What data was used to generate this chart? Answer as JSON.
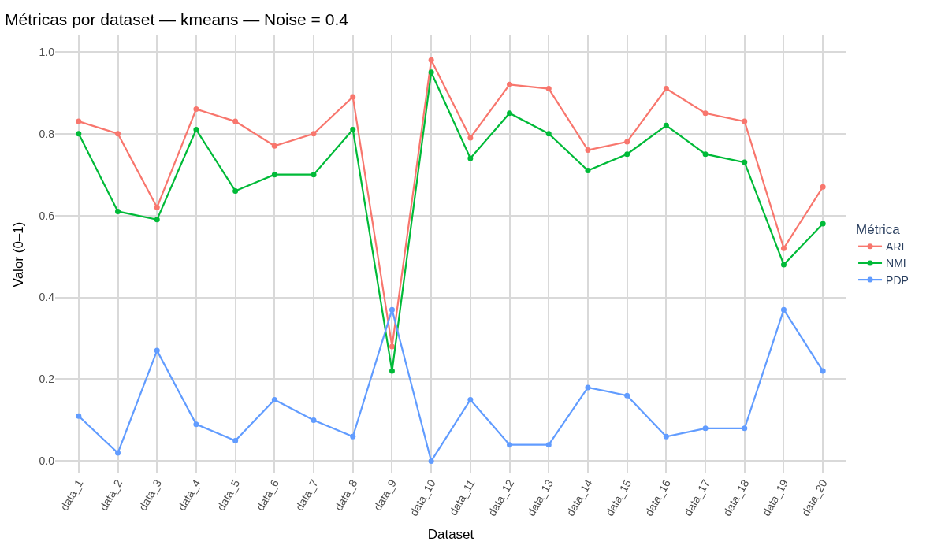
{
  "chart_data": {
    "type": "line",
    "title": "Métricas por dataset — kmeans — Noise = 0.4",
    "xlabel": "Dataset",
    "ylabel": "Valor (0–1)",
    "legend_title": "Métrica",
    "categories": [
      "data_1",
      "data_2",
      "data_3",
      "data_4",
      "data_5",
      "data_6",
      "data_7",
      "data_8",
      "data_9",
      "data_10",
      "data_11",
      "data_12",
      "data_13",
      "data_14",
      "data_15",
      "data_16",
      "data_17",
      "data_18",
      "data_19",
      "data_20"
    ],
    "series": [
      {
        "name": "ARI",
        "color": "#f8766d",
        "values": [
          0.83,
          0.8,
          0.62,
          0.86,
          0.83,
          0.77,
          0.8,
          0.89,
          0.28,
          0.98,
          0.79,
          0.92,
          0.91,
          0.76,
          0.78,
          0.91,
          0.85,
          0.83,
          0.52,
          0.67
        ]
      },
      {
        "name": "NMI",
        "color": "#00ba38",
        "values": [
          0.8,
          0.61,
          0.59,
          0.81,
          0.66,
          0.7,
          0.7,
          0.81,
          0.22,
          0.95,
          0.74,
          0.85,
          0.8,
          0.71,
          0.75,
          0.82,
          0.75,
          0.73,
          0.48,
          0.58
        ]
      },
      {
        "name": "PDP",
        "color": "#619cff",
        "values": [
          0.11,
          0.02,
          0.27,
          0.09,
          0.05,
          0.15,
          0.1,
          0.06,
          0.37,
          0.0,
          0.15,
          0.04,
          0.04,
          0.18,
          0.16,
          0.06,
          0.08,
          0.08,
          0.37,
          0.22
        ]
      }
    ],
    "ylim": [
      -0.03,
      1.04
    ],
    "yticks": [
      {
        "value": 0,
        "label": "0.0"
      },
      0.2,
      0.4,
      0.6,
      0.8,
      {
        "value": 1,
        "label": "1.0"
      }
    ],
    "grid": true,
    "legend": "right",
    "marker": "circle",
    "line_style": "solid"
  }
}
